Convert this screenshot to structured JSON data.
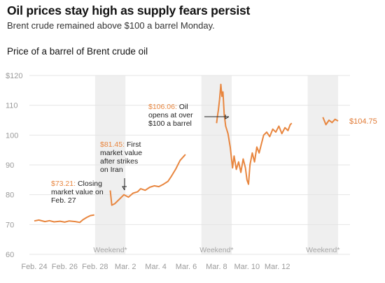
{
  "header": {
    "headline": "Oil prices stay high as supply fears persist",
    "subhead": "Brent crude remained above $100 a barrel Monday."
  },
  "chart_data": {
    "type": "line",
    "title": "Price of a barrel of Brent crude oil",
    "xlabel": "",
    "ylabel": "",
    "ylim": [
      60,
      120
    ],
    "xlim_days": [
      "Feb. 24",
      "Mar. 15"
    ],
    "y_ticks": [
      "$120",
      "110",
      "100",
      "90",
      "80",
      "70",
      "60"
    ],
    "y_tick_values": [
      120,
      110,
      100,
      90,
      80,
      70,
      60
    ],
    "x_ticks": [
      "Feb. 24",
      "Feb. 26",
      "Feb. 28",
      "Mar. 2",
      "Mar. 4",
      "Mar. 6",
      "Mar. 8",
      "Mar. 10",
      "Mar. 12"
    ],
    "grid": "horizontal",
    "colors": {
      "line": "#e8863f",
      "highlight": "#e8863f",
      "weekend_band": "#efefef",
      "grid": "#e4e4e4"
    },
    "weekend_label": "Weekend*",
    "weekends": [
      [
        "Feb. 28 (Sat)",
        "Mar. 2 (Mon)"
      ],
      [
        "Mar. 7 (Sat)",
        "Mar. 9 (Mon)"
      ],
      [
        "Mar. 14 (Sat)",
        "Mar. 16 (Mon)"
      ]
    ],
    "series": [
      {
        "segments": [
          {
            "x": [
              "Feb. 24",
              "Feb. 24",
              "Feb. 24",
              "Feb. 25",
              "Feb. 25",
              "Feb. 25",
              "Feb. 26",
              "Feb. 26",
              "Feb. 26",
              "Feb. 27",
              "Feb. 27",
              "Feb. 27",
              "Feb. 27",
              "Feb. 27"
            ],
            "x_day": [
              0,
              0.3,
              0.7,
              1.0,
              1.3,
              1.7,
              2.0,
              2.3,
              2.7,
              3.0,
              3.2,
              3.45,
              3.7,
              3.95
            ],
            "y": [
              71.2,
              71.5,
              71.0,
              71.3,
              70.9,
              71.1,
              70.8,
              71.2,
              71.0,
              70.7,
              71.6,
              72.4,
              73.0,
              73.21
            ]
          },
          {
            "x_day": [
              5.0,
              5.05,
              5.1,
              5.3,
              5.6,
              5.9,
              6.2,
              6.5,
              6.8,
              7.0,
              7.3,
              7.6,
              7.9,
              8.2,
              8.5,
              8.8,
              9.0,
              9.3,
              9.6,
              9.95
            ],
            "y": [
              81.45,
              79.0,
              76.5,
              77.0,
              78.5,
              80.0,
              79.2,
              80.5,
              81.0,
              82.0,
              81.5,
              82.5,
              83.0,
              82.7,
              83.5,
              84.5,
              86.0,
              88.5,
              91.5,
              93.5
            ]
          },
          {
            "x_day": [
              12.0,
              12.05,
              12.12,
              12.2,
              12.28,
              12.35,
              12.42,
              12.5,
              12.6,
              12.75,
              12.9,
              13.05,
              13.15,
              13.3,
              13.45,
              13.6,
              13.75,
              13.9,
              14.0,
              14.1,
              14.2,
              14.35,
              14.5,
              14.65,
              14.8,
              14.95,
              15.1,
              15.3,
              15.5,
              15.7,
              15.9,
              16.1,
              16.3,
              16.5,
              16.7,
              16.85,
              16.95
            ],
            "y": [
              104.0,
              106.06,
              108.5,
              112.0,
              117.0,
              113.0,
              114.5,
              107.0,
              103.0,
              100.5,
              96.0,
              89.0,
              93.0,
              88.5,
              91.0,
              87.5,
              92.0,
              89.0,
              85.0,
              83.5,
              90.0,
              94.0,
              91.0,
              96.0,
              94.0,
              97.0,
              100.0,
              101.0,
              99.5,
              102.0,
              101.0,
              103.0,
              100.5,
              102.5,
              101.5,
              103.5,
              104.0
            ]
          },
          {
            "x_day": [
              19.0,
              19.2,
              19.4,
              19.6,
              19.8,
              20.0
            ],
            "y": [
              106.0,
              103.5,
              105.0,
              104.2,
              105.3,
              104.75
            ]
          }
        ]
      }
    ],
    "annotations": [
      {
        "value_label": "$73.21:",
        "lines": [
          " Closing",
          "market value on",
          "Feb. 27"
        ],
        "x_day": 3.95,
        "y": 73.21
      },
      {
        "value_label": "$81.45:",
        "lines": [
          " First",
          "market value",
          "after strikes",
          "on Iran"
        ],
        "x_day": 5.0,
        "y": 81.45
      },
      {
        "value_label": "$106.06:",
        "lines": [
          " Oil",
          "opens at over",
          "$100 a barrel"
        ],
        "x_day": 12.05,
        "y": 106.06
      }
    ],
    "end_label": "$104.75",
    "end_value": 104.75
  }
}
